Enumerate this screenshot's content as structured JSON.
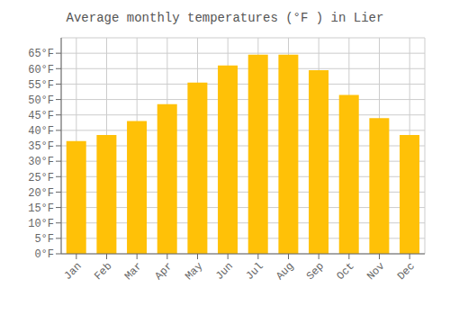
{
  "chart_data": {
    "type": "bar",
    "title": "Average monthly temperatures (°F ) in Lier",
    "categories": [
      "Jan",
      "Feb",
      "Mar",
      "Apr",
      "May",
      "Jun",
      "Jul",
      "Aug",
      "Sep",
      "Oct",
      "Nov",
      "Dec"
    ],
    "values": [
      36.5,
      38.5,
      43.0,
      48.5,
      55.5,
      61.0,
      64.5,
      64.5,
      59.5,
      51.5,
      44.0,
      38.5
    ],
    "color": "#FFC107",
    "ylim": [
      0,
      70
    ],
    "yticks": [
      {
        "value": 0,
        "label": "0°F"
      },
      {
        "value": 5,
        "label": "5°F"
      },
      {
        "value": 10,
        "label": "10°F"
      },
      {
        "value": 15,
        "label": "15°F"
      },
      {
        "value": 20,
        "label": "20°F"
      },
      {
        "value": 25,
        "label": "25°F"
      },
      {
        "value": 30,
        "label": "30°F"
      },
      {
        "value": 35,
        "label": "35°F"
      },
      {
        "value": 40,
        "label": "40°F"
      },
      {
        "value": 45,
        "label": "45°F"
      },
      {
        "value": 50,
        "label": "50°F"
      },
      {
        "value": 55,
        "label": "55°F"
      },
      {
        "value": 60,
        "label": "60°F"
      },
      {
        "value": 65,
        "label": "65°F"
      }
    ],
    "grid": true
  }
}
